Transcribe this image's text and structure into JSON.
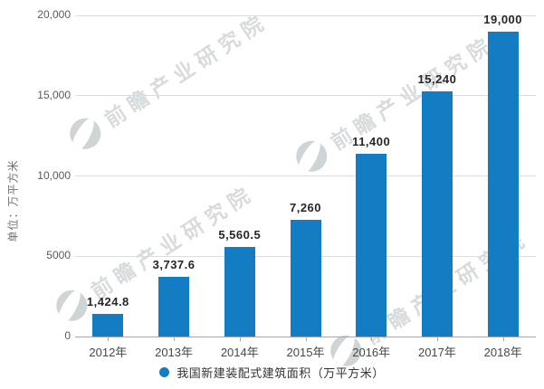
{
  "chart_data": {
    "type": "bar",
    "title": "",
    "categories": [
      "2012年",
      "2013年",
      "2014年",
      "2015年",
      "2016年",
      "2017年",
      "2018年"
    ],
    "values": [
      1424.8,
      3737.6,
      5560.5,
      7260,
      11400,
      15240,
      19000
    ],
    "value_labels": [
      "1,424.8",
      "3,737.6",
      "5,560.5",
      "7,260",
      "11,400",
      "15,240",
      "19,000"
    ],
    "xlabel": "",
    "ylabel": "单位：万平方米",
    "ylim": [
      0,
      20000
    ],
    "yticks": [
      {
        "value": 0,
        "label": "0"
      },
      {
        "value": 5000,
        "label": "5000"
      },
      {
        "value": 10000,
        "label": "10,000"
      },
      {
        "value": 15000,
        "label": "15,000"
      },
      {
        "value": 20000,
        "label": "20,000"
      }
    ],
    "grid": true,
    "legend_position": "bottom",
    "legend": "我国新建装配式建筑面积（万平方米）",
    "bar_color": "#147cc2"
  },
  "watermark": {
    "text": "前瞻产业研究院",
    "logo": "qianzhan-logo-icon"
  }
}
